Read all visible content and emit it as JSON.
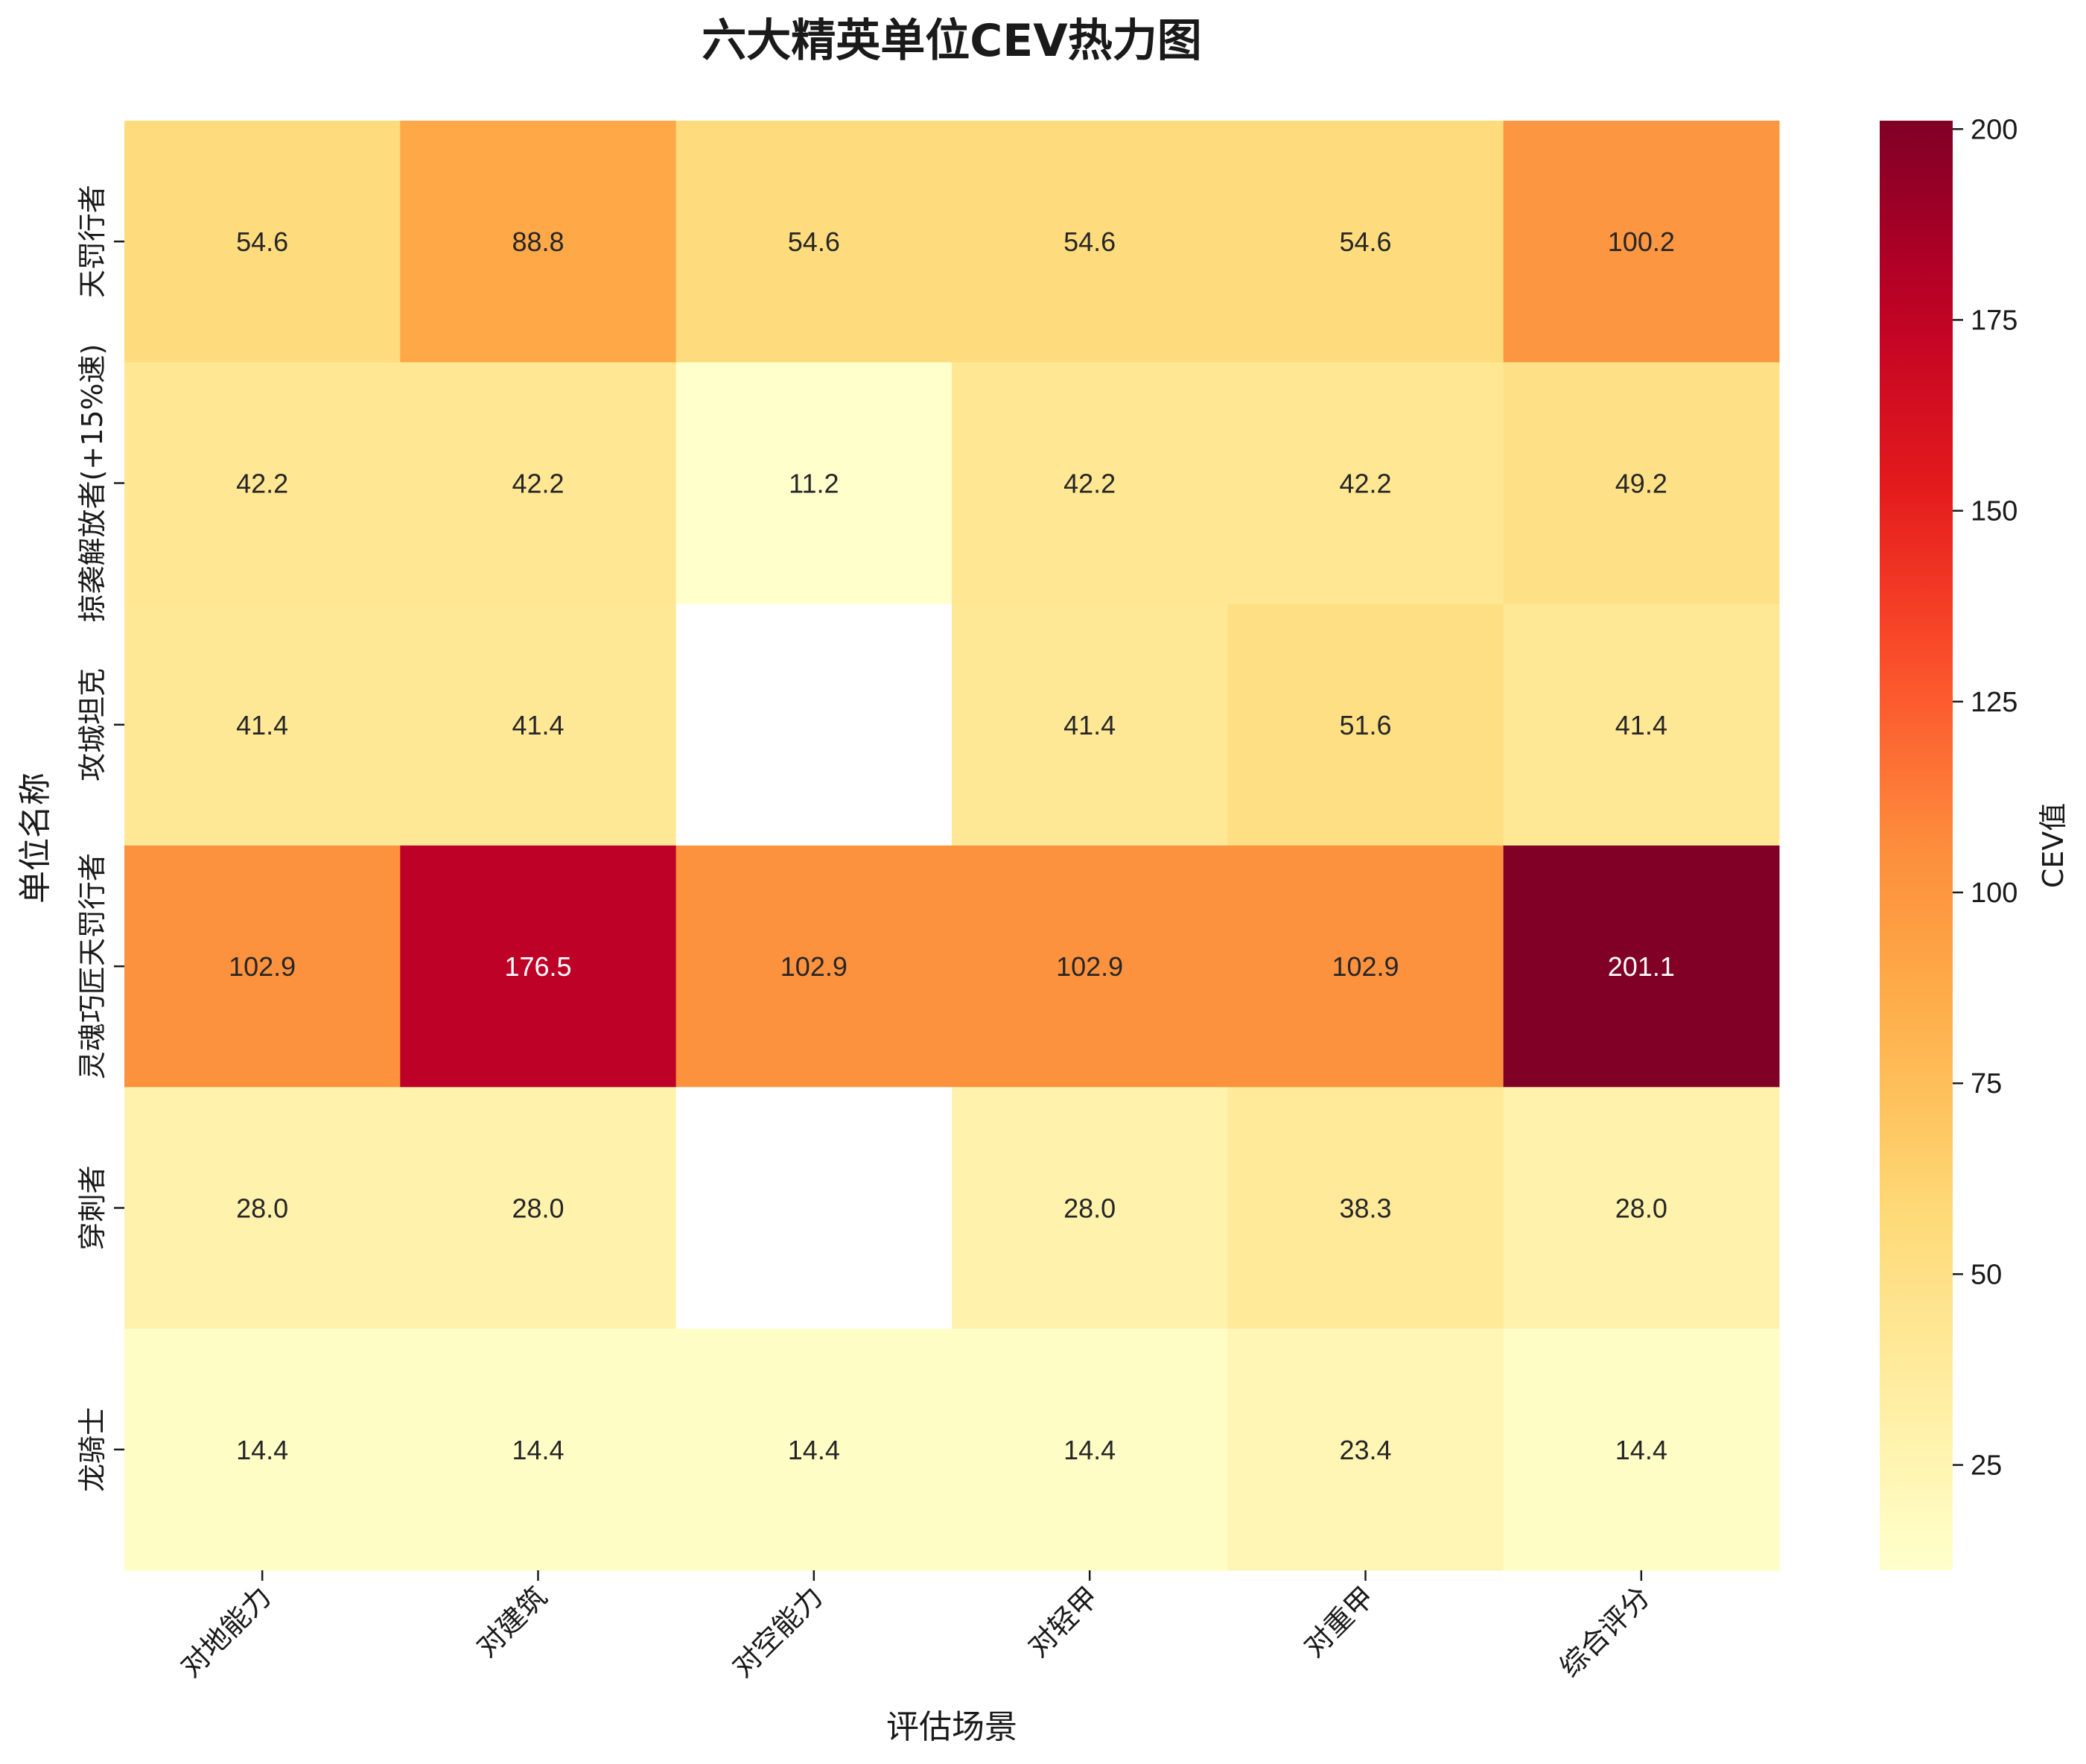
{
  "chart_data": {
    "type": "heatmap",
    "title": "六大精英单位CEV热力图",
    "xlabel": "评估场景",
    "ylabel": "单位名称",
    "colorbar_label": "CEV值",
    "colormap": "YlOrRd",
    "x_categories": [
      "对地能力",
      "对建筑",
      "对空能力",
      "对轻甲",
      "对重甲",
      "综合评分"
    ],
    "y_categories": [
      "天罚行者",
      "掠袭解放者(+15%速)",
      "攻城坦克",
      "灵魂巧匠天罚行者",
      "穿刺者",
      "龙骑士"
    ],
    "values": [
      [
        54.6,
        88.8,
        54.6,
        54.6,
        54.6,
        100.2
      ],
      [
        42.2,
        42.2,
        11.2,
        42.2,
        42.2,
        49.2
      ],
      [
        41.4,
        41.4,
        null,
        41.4,
        51.6,
        41.4
      ],
      [
        102.9,
        176.5,
        102.9,
        102.9,
        102.9,
        201.1
      ],
      [
        28.0,
        28.0,
        null,
        28.0,
        38.3,
        28.0
      ],
      [
        14.4,
        14.4,
        14.4,
        14.4,
        23.4,
        14.4
      ]
    ],
    "value_format": "0.1f",
    "color_range": [
      11.2,
      201.1
    ],
    "colorbar_ticks": [
      25,
      50,
      75,
      100,
      125,
      150,
      175,
      200
    ],
    "missing_color": "#ffffff"
  }
}
